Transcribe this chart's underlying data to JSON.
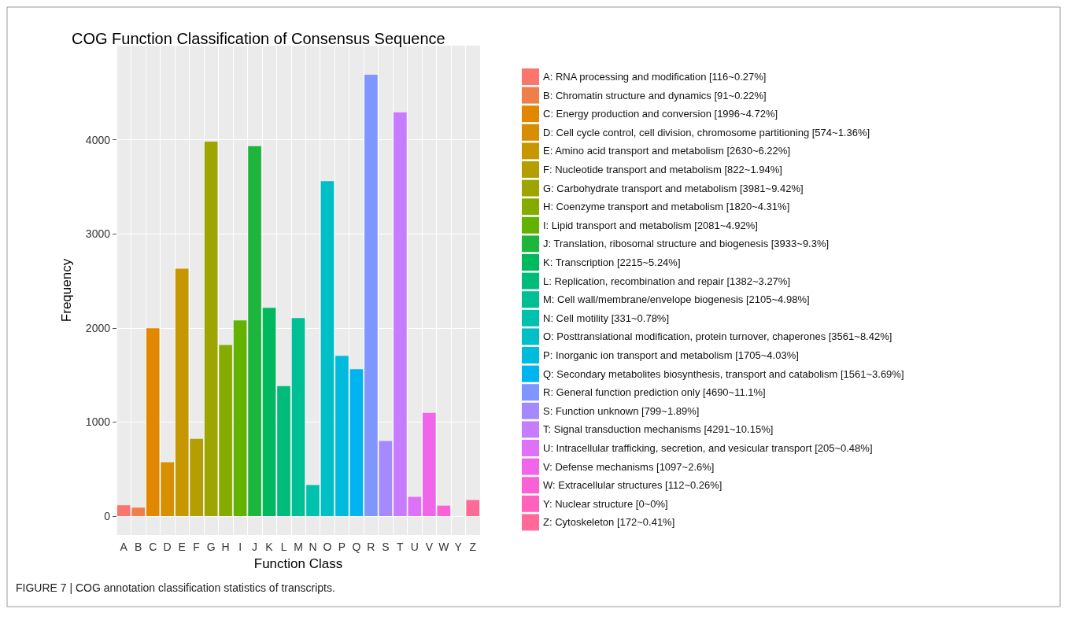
{
  "chart_data": {
    "type": "bar",
    "title": "COG Function Classification of Consensus Sequence",
    "xlabel": "Function Class",
    "ylabel": "Frequency",
    "categories": [
      "A",
      "B",
      "C",
      "D",
      "E",
      "F",
      "G",
      "H",
      "I",
      "J",
      "K",
      "L",
      "M",
      "N",
      "O",
      "P",
      "Q",
      "R",
      "S",
      "T",
      "U",
      "V",
      "W",
      "Y",
      "Z"
    ],
    "series": [
      {
        "name": "A: RNA processing and modification [116~0.27%]",
        "color": "#f8766d",
        "values": [
          116,
          null,
          null,
          null,
          null,
          null,
          null,
          null,
          null,
          null,
          null,
          null,
          null,
          null,
          null,
          null,
          null,
          null,
          null,
          null,
          null,
          null,
          null,
          null,
          null
        ]
      },
      {
        "name": "B: Chromatin structure and dynamics [91~0.22%]",
        "color": "#ee7f4b",
        "values": [
          null,
          91,
          null,
          null,
          null,
          null,
          null,
          null,
          null,
          null,
          null,
          null,
          null,
          null,
          null,
          null,
          null,
          null,
          null,
          null,
          null,
          null,
          null,
          null,
          null
        ]
      },
      {
        "name": "C: Energy production and conversion [1996~4.72%]",
        "color": "#e28700",
        "values": [
          null,
          null,
          1996,
          null,
          null,
          null,
          null,
          null,
          null,
          null,
          null,
          null,
          null,
          null,
          null,
          null,
          null,
          null,
          null,
          null,
          null,
          null,
          null,
          null,
          null
        ]
      },
      {
        "name": "D: Cell cycle control, cell division, chromosome partitioning [574~1.36%]",
        "color": "#d58f00",
        "values": [
          null,
          null,
          null,
          574,
          null,
          null,
          null,
          null,
          null,
          null,
          null,
          null,
          null,
          null,
          null,
          null,
          null,
          null,
          null,
          null,
          null,
          null,
          null,
          null,
          null
        ]
      },
      {
        "name": "E: Amino acid transport and metabolism [2630~6.22%]",
        "color": "#c69700",
        "values": [
          null,
          null,
          null,
          null,
          2630,
          null,
          null,
          null,
          null,
          null,
          null,
          null,
          null,
          null,
          null,
          null,
          null,
          null,
          null,
          null,
          null,
          null,
          null,
          null,
          null
        ]
      },
      {
        "name": "F: Nucleotide transport and metabolism [822~1.94%]",
        "color": "#b49e00",
        "values": [
          null,
          null,
          null,
          null,
          null,
          822,
          null,
          null,
          null,
          null,
          null,
          null,
          null,
          null,
          null,
          null,
          null,
          null,
          null,
          null,
          null,
          null,
          null,
          null,
          null
        ]
      },
      {
        "name": "G: Carbohydrate transport and metabolism [3981~9.42%]",
        "color": "#9fa500",
        "values": [
          null,
          null,
          null,
          null,
          null,
          null,
          3981,
          null,
          null,
          null,
          null,
          null,
          null,
          null,
          null,
          null,
          null,
          null,
          null,
          null,
          null,
          null,
          null,
          null,
          null
        ]
      },
      {
        "name": "H: Coenzyme transport and metabolism [1820~4.31%]",
        "color": "#86ab00",
        "values": [
          null,
          null,
          null,
          null,
          null,
          null,
          null,
          1820,
          null,
          null,
          null,
          null,
          null,
          null,
          null,
          null,
          null,
          null,
          null,
          null,
          null,
          null,
          null,
          null,
          null
        ]
      },
      {
        "name": "I: Lipid transport and metabolism [2081~4.92%]",
        "color": "#63b100",
        "values": [
          null,
          null,
          null,
          null,
          null,
          null,
          null,
          null,
          2081,
          null,
          null,
          null,
          null,
          null,
          null,
          null,
          null,
          null,
          null,
          null,
          null,
          null,
          null,
          null,
          null
        ]
      },
      {
        "name": "J: Translation, ribosomal structure and biogenesis [3933~9.3%]",
        "color": "#1db53c",
        "values": [
          null,
          null,
          null,
          null,
          null,
          null,
          null,
          null,
          null,
          3933,
          null,
          null,
          null,
          null,
          null,
          null,
          null,
          null,
          null,
          null,
          null,
          null,
          null,
          null,
          null
        ]
      },
      {
        "name": "K: Transcription [2215~5.24%]",
        "color": "#00b95e",
        "values": [
          null,
          null,
          null,
          null,
          null,
          null,
          null,
          null,
          null,
          null,
          2215,
          null,
          null,
          null,
          null,
          null,
          null,
          null,
          null,
          null,
          null,
          null,
          null,
          null,
          null
        ]
      },
      {
        "name": "L: Replication, recombination and repair [1382~3.27%]",
        "color": "#00bc7a",
        "values": [
          null,
          null,
          null,
          null,
          null,
          null,
          null,
          null,
          null,
          null,
          null,
          1382,
          null,
          null,
          null,
          null,
          null,
          null,
          null,
          null,
          null,
          null,
          null,
          null,
          null
        ]
      },
      {
        "name": "M: Cell wall/membrane/envelope biogenesis [2105~4.98%]",
        "color": "#00bf95",
        "values": [
          null,
          null,
          null,
          null,
          null,
          null,
          null,
          null,
          null,
          null,
          null,
          null,
          2105,
          null,
          null,
          null,
          null,
          null,
          null,
          null,
          null,
          null,
          null,
          null,
          null
        ]
      },
      {
        "name": "N: Cell motility [331~0.78%]",
        "color": "#00c0ae",
        "values": [
          null,
          null,
          null,
          null,
          null,
          null,
          null,
          null,
          null,
          null,
          null,
          null,
          null,
          331,
          null,
          null,
          null,
          null,
          null,
          null,
          null,
          null,
          null,
          null,
          null
        ]
      },
      {
        "name": "O: Posttranslational modification, protein turnover, chaperones [3561~8.42%]",
        "color": "#00bfc6",
        "values": [
          null,
          null,
          null,
          null,
          null,
          null,
          null,
          null,
          null,
          null,
          null,
          null,
          null,
          null,
          3561,
          null,
          null,
          null,
          null,
          null,
          null,
          null,
          null,
          null,
          null
        ]
      },
      {
        "name": "P: Inorganic ion transport and metabolism [1705~4.03%]",
        "color": "#00bbdb",
        "values": [
          null,
          null,
          null,
          null,
          null,
          null,
          null,
          null,
          null,
          null,
          null,
          null,
          null,
          null,
          null,
          1705,
          null,
          null,
          null,
          null,
          null,
          null,
          null,
          null,
          null
        ]
      },
      {
        "name": "Q: Secondary metabolites biosynthesis, transport and catabolism [1561~3.69%]",
        "color": "#00b4ef",
        "values": [
          null,
          null,
          null,
          null,
          null,
          null,
          null,
          null,
          null,
          null,
          null,
          null,
          null,
          null,
          null,
          null,
          1561,
          null,
          null,
          null,
          null,
          null,
          null,
          null,
          null
        ]
      },
      {
        "name": "R: General function prediction only [4690~11.1%]",
        "color": "#7f96ff",
        "values": [
          null,
          null,
          null,
          null,
          null,
          null,
          null,
          null,
          null,
          null,
          null,
          null,
          null,
          null,
          null,
          null,
          null,
          4690,
          null,
          null,
          null,
          null,
          null,
          null,
          null
        ]
      },
      {
        "name": "S: Function unknown [799~1.89%]",
        "color": "#a58aff",
        "values": [
          null,
          null,
          null,
          null,
          null,
          null,
          null,
          null,
          null,
          null,
          null,
          null,
          null,
          null,
          null,
          null,
          null,
          null,
          799,
          null,
          null,
          null,
          null,
          null,
          null
        ]
      },
      {
        "name": "T: Signal transduction mechanisms [4291~10.15%]",
        "color": "#c77cff",
        "values": [
          null,
          null,
          null,
          null,
          null,
          null,
          null,
          null,
          null,
          null,
          null,
          null,
          null,
          null,
          null,
          null,
          null,
          null,
          null,
          4291,
          null,
          null,
          null,
          null,
          null
        ]
      },
      {
        "name": "U: Intracellular trafficking, secretion, and vesicular transport [205~0.48%]",
        "color": "#df70f8",
        "values": [
          null,
          null,
          null,
          null,
          null,
          null,
          null,
          null,
          null,
          null,
          null,
          null,
          null,
          null,
          null,
          null,
          null,
          null,
          null,
          null,
          205,
          null,
          null,
          null,
          null
        ]
      },
      {
        "name": "V: Defense mechanisms [1097~2.6%]",
        "color": "#f066ea",
        "values": [
          null,
          null,
          null,
          null,
          null,
          null,
          null,
          null,
          null,
          null,
          null,
          null,
          null,
          null,
          null,
          null,
          null,
          null,
          null,
          null,
          null,
          1097,
          null,
          null,
          null
        ]
      },
      {
        "name": "W: Extracellular structures [112~0.26%]",
        "color": "#fb61d7",
        "values": [
          null,
          null,
          null,
          null,
          null,
          null,
          null,
          null,
          null,
          null,
          null,
          null,
          null,
          null,
          null,
          null,
          null,
          null,
          null,
          null,
          null,
          null,
          112,
          null,
          null
        ]
      },
      {
        "name": "Y: Nuclear structure [0~0%]",
        "color": "#ff62bc",
        "values": [
          null,
          null,
          null,
          null,
          null,
          null,
          null,
          null,
          null,
          null,
          null,
          null,
          null,
          null,
          null,
          null,
          null,
          null,
          null,
          null,
          null,
          null,
          null,
          0,
          null
        ]
      },
      {
        "name": "Z: Cytoskeleton [172~0.41%]",
        "color": "#ff6a98",
        "values": [
          null,
          null,
          null,
          null,
          null,
          null,
          null,
          null,
          null,
          null,
          null,
          null,
          null,
          null,
          null,
          null,
          null,
          null,
          null,
          null,
          null,
          null,
          null,
          null,
          172
        ]
      }
    ],
    "ylim": [
      -200,
      5000
    ],
    "yticks": [
      0,
      1000,
      2000,
      3000,
      4000
    ],
    "grid": true,
    "legend": "right",
    "annotations": [
      "FIGURE 7 | COG annotation classification statistics of transcripts."
    ]
  }
}
